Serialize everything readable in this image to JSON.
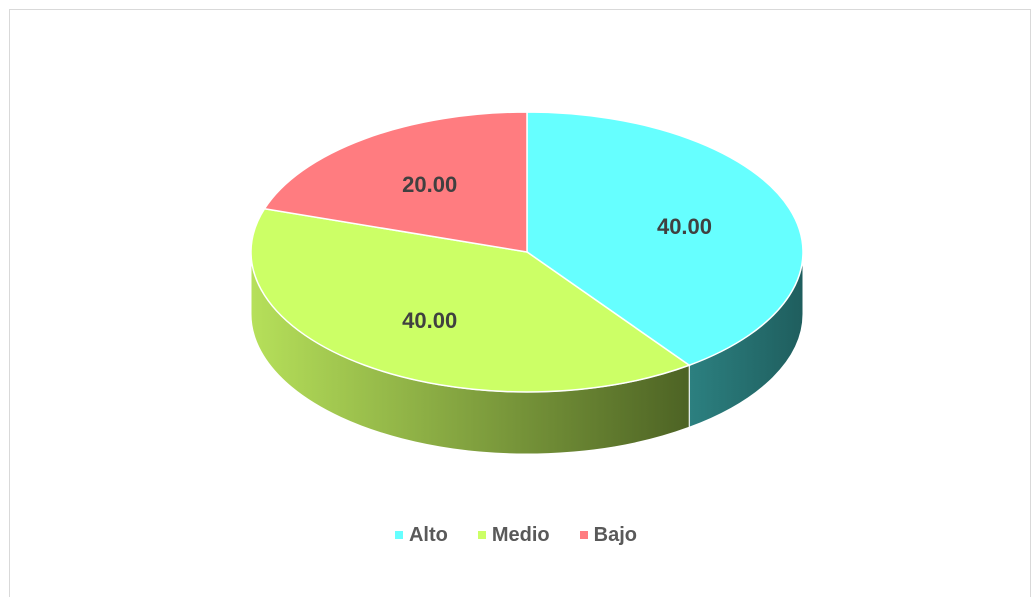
{
  "chart_data": {
    "type": "pie",
    "categories": [
      "Alto",
      "Medio",
      "Bajo"
    ],
    "values": [
      40.0,
      40.0,
      20.0
    ],
    "data_labels": [
      "40.00",
      "40.00",
      "20.00"
    ],
    "colors": [
      "#66FFFF",
      "#CCFF66",
      "#FF7C80"
    ],
    "side_colors": [
      "#2a7a7a",
      "#8aad3e",
      "#b84a4d"
    ],
    "style": "3d",
    "legend_position": "bottom",
    "title": ""
  },
  "legend": {
    "items": [
      {
        "label": "Alto",
        "color": "#66FFFF"
      },
      {
        "label": "Medio",
        "color": "#CCFF66"
      },
      {
        "label": "Bajo",
        "color": "#FF7C80"
      }
    ]
  }
}
